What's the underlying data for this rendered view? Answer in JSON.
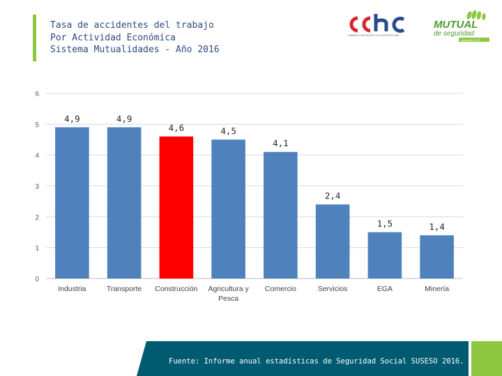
{
  "header": {
    "title_lines": [
      "Tasa de accidentes del trabajo",
      "Por Actividad Económica",
      "Sistema Mutualidades - Año 2016"
    ]
  },
  "logos": {
    "cchc": {
      "wordmark": "cchc",
      "tagline": "CÁMARA CHILENA DE LA CONSTRUCCIÓN"
    },
    "mutual": {
      "line1": "MUTUAL",
      "line2": "de seguridad",
      "tagline": "asesoría CChC"
    }
  },
  "chart_data": {
    "type": "bar",
    "categories": [
      "Industria",
      "Transporte",
      "Construcción",
      "Agricultura y Pesca",
      "Comercio",
      "Servicios",
      "EGA",
      "Minería"
    ],
    "category_label_lines": [
      [
        "Industria"
      ],
      [
        "Transporte"
      ],
      [
        "Construcción"
      ],
      [
        "Agricultura y",
        "Pesca"
      ],
      [
        "Comercio"
      ],
      [
        "Servicios"
      ],
      [
        "EGA"
      ],
      [
        "Minería"
      ]
    ],
    "values": [
      4.9,
      4.9,
      4.6,
      4.5,
      4.1,
      2.4,
      1.5,
      1.4
    ],
    "data_labels": [
      "4,9",
      "4,9",
      "4,6",
      "4,5",
      "4,1",
      "2,4",
      "1,5",
      "1,4"
    ],
    "bar_colors": [
      "#4f81bd",
      "#4f81bd",
      "#ff0000",
      "#4f81bd",
      "#4f81bd",
      "#4f81bd",
      "#4f81bd",
      "#4f81bd"
    ],
    "yticks": [
      "0",
      "1",
      "2",
      "3",
      "4",
      "5",
      "6"
    ],
    "ylim": [
      0,
      6
    ],
    "grid": true,
    "legend": false
  },
  "footer": {
    "text": "Fuente: Informe anual estadísticas de Seguridad Social SUSESO 2016."
  },
  "colors": {
    "accent": "#8dc63f",
    "title": "#2e4a7d",
    "footer_dark": "#005a70",
    "bar": "#4f81bd",
    "highlight_bar": "#ff0000"
  }
}
